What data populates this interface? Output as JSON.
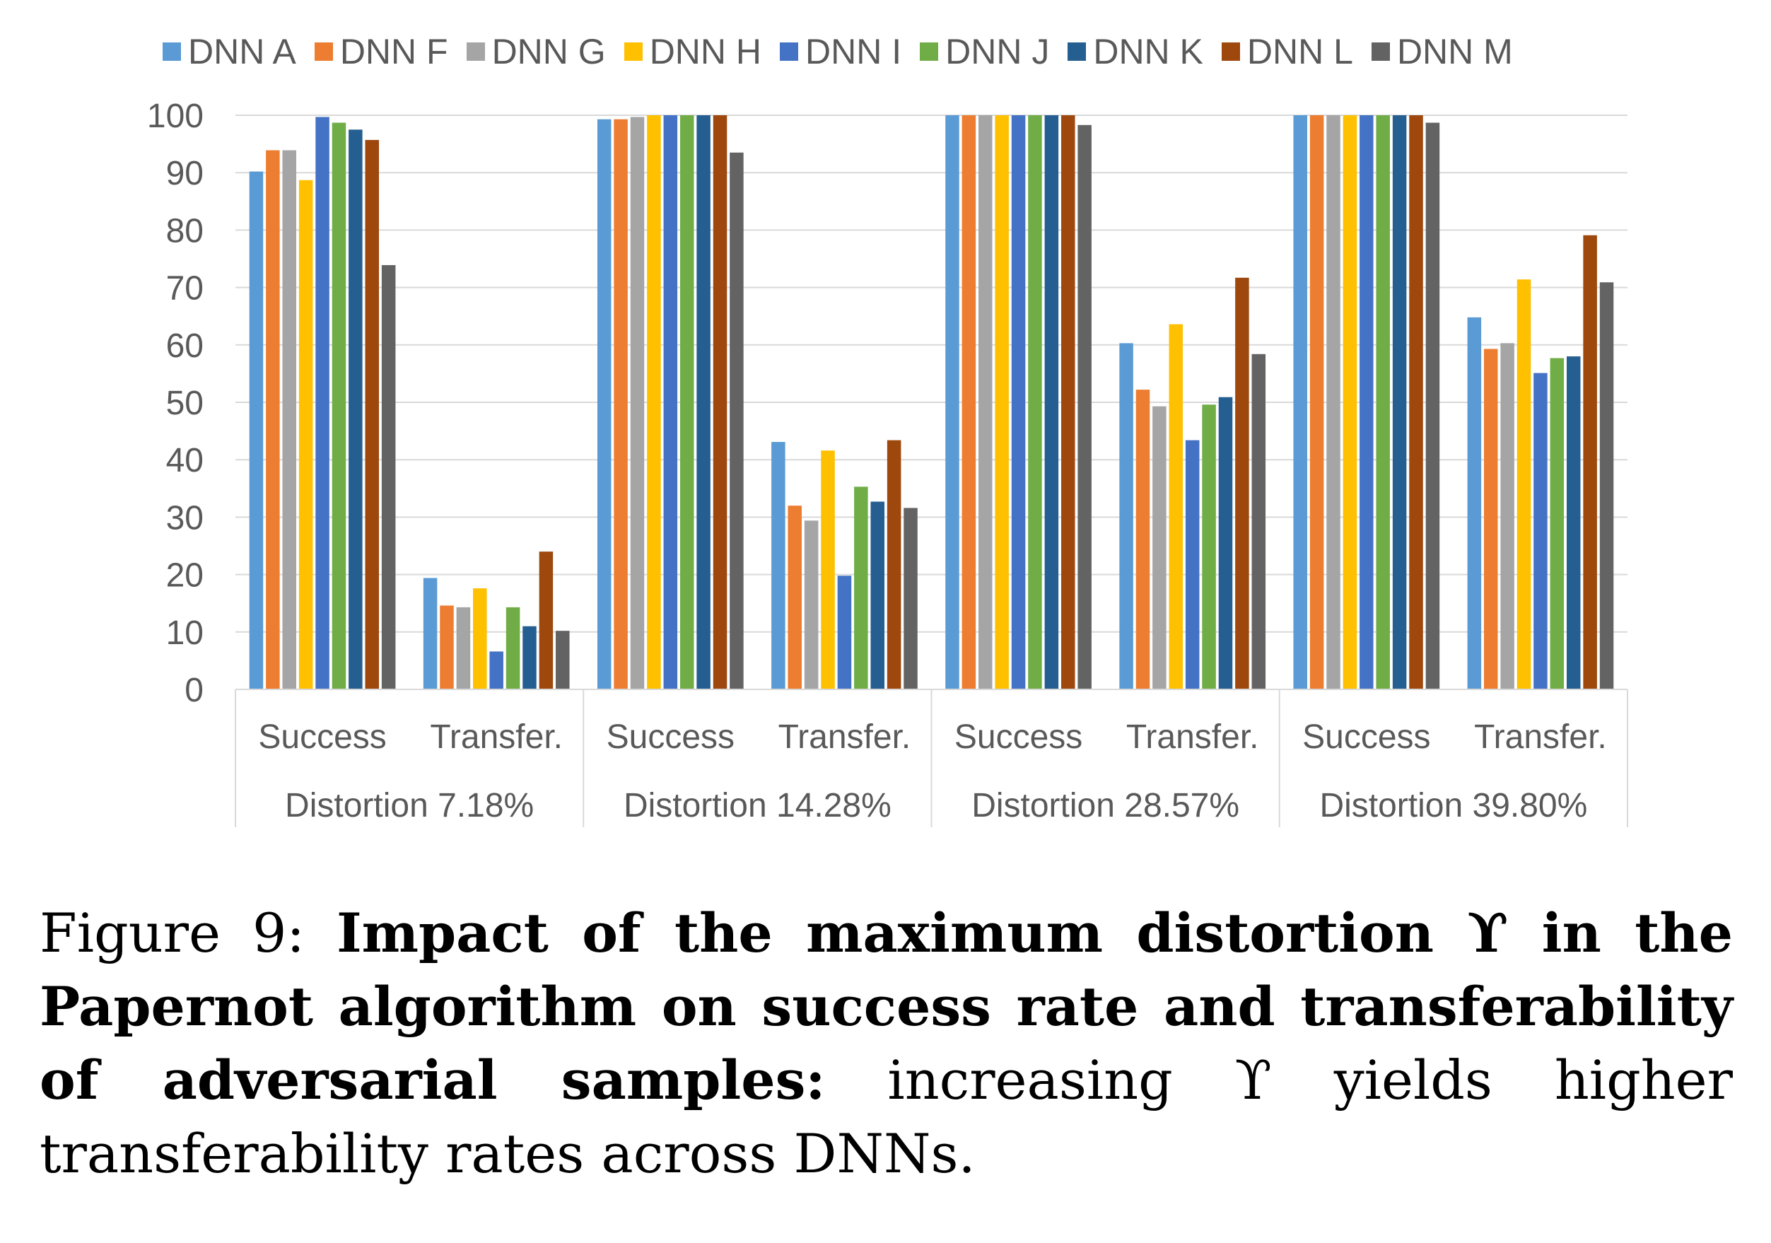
{
  "chart_data": {
    "type": "bar",
    "title": "",
    "xlabel": "",
    "ylabel": "",
    "ylim": [
      0,
      100
    ],
    "yticks": [
      0,
      10,
      20,
      30,
      40,
      50,
      60,
      70,
      80,
      90,
      100
    ],
    "grid": true,
    "legend_position": "top",
    "groups": [
      {
        "label": "Distortion 7.18%",
        "categories": [
          "Success",
          "Transfer."
        ]
      },
      {
        "label": "Distortion 14.28%",
        "categories": [
          "Success",
          "Transfer."
        ]
      },
      {
        "label": "Distortion 28.57%",
        "categories": [
          "Success",
          "Transfer."
        ]
      },
      {
        "label": "Distortion 39.80%",
        "categories": [
          "Success",
          "Transfer."
        ]
      }
    ],
    "series": [
      {
        "name": "DNN A",
        "color": "#5b9bd5",
        "values": [
          90.2,
          19.4,
          99.3,
          43.1,
          100,
          60.3,
          100,
          64.8
        ]
      },
      {
        "name": "DNN F",
        "color": "#ed7d31",
        "values": [
          93.9,
          14.6,
          99.3,
          32.0,
          100,
          52.2,
          100,
          59.3
        ]
      },
      {
        "name": "DNN G",
        "color": "#a5a5a5",
        "values": [
          93.9,
          14.3,
          99.7,
          29.4,
          100,
          49.3,
          100,
          60.3
        ]
      },
      {
        "name": "DNN H",
        "color": "#ffc000",
        "values": [
          88.7,
          17.6,
          100,
          41.6,
          100,
          63.6,
          100,
          71.4
        ]
      },
      {
        "name": "DNN I",
        "color": "#4472c4",
        "values": [
          99.7,
          6.6,
          100,
          19.8,
          100,
          43.4,
          100,
          55.1
        ]
      },
      {
        "name": "DNN J",
        "color": "#70ad47",
        "values": [
          98.7,
          14.3,
          100,
          35.3,
          100,
          49.6,
          100,
          57.7
        ]
      },
      {
        "name": "DNN K",
        "color": "#255e91",
        "values": [
          97.5,
          11.0,
          100,
          32.7,
          100,
          50.9,
          100,
          58.0
        ]
      },
      {
        "name": "DNN L",
        "color": "#9e480e",
        "values": [
          95.7,
          24.0,
          100,
          43.4,
          100,
          71.7,
          100,
          79.1
        ]
      },
      {
        "name": "DNN M",
        "color": "#636363",
        "values": [
          73.9,
          10.2,
          93.5,
          31.6,
          98.3,
          58.4,
          98.7,
          70.9
        ]
      }
    ]
  },
  "caption": {
    "prefix": "Figure 9: ",
    "bold": "Impact of the maximum distortion ϒ in the Papernot algorithm on success rate and transferability of adversarial samples:",
    "rest": " increasing ϒ yields higher transferability rates across DNNs."
  }
}
